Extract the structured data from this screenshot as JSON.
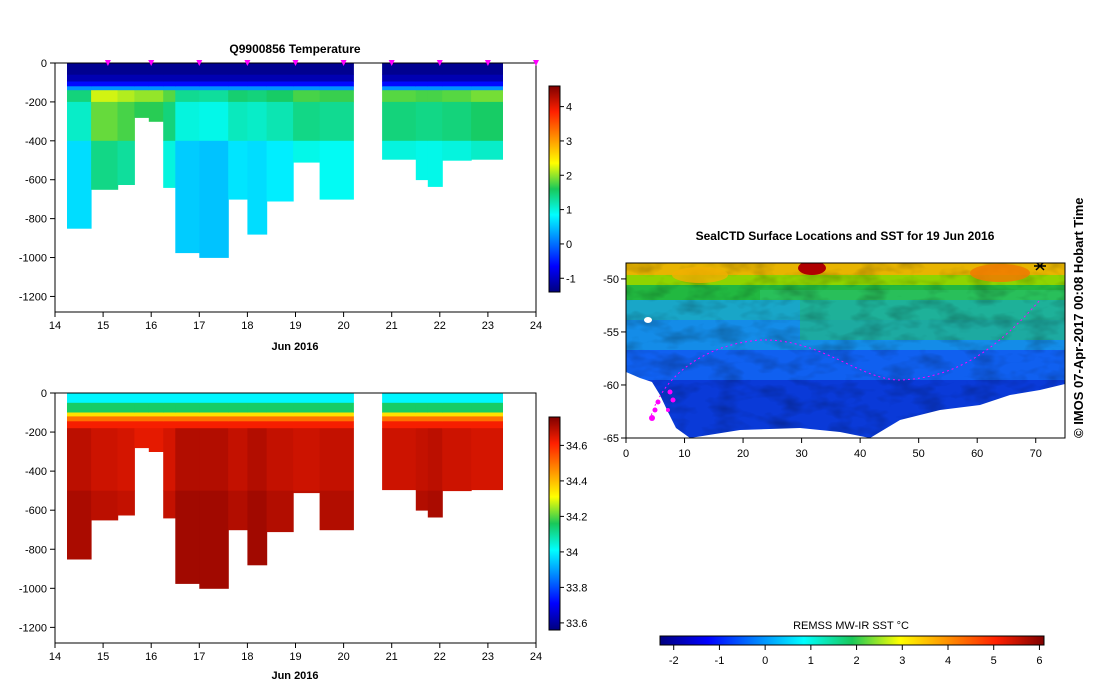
{
  "chart_data": [
    {
      "type": "heatmap",
      "title": "Q9900856  Temperature",
      "xlabel": "Jun 2016",
      "ylabel": "",
      "xlim": [
        14,
        24
      ],
      "ylim": [
        -1280,
        0
      ],
      "x_ticks": [
        "14",
        "15",
        "16",
        "17",
        "18",
        "19",
        "20",
        "21",
        "22",
        "23",
        "24"
      ],
      "y_ticks": [
        "0",
        "-200",
        "-400",
        "-600",
        "-800",
        "-1000",
        "-1200"
      ],
      "colorbar": {
        "ticks": [
          "4",
          "3",
          "2",
          "1",
          "0",
          "-1"
        ],
        "range": [
          -1.4,
          4.6
        ]
      },
      "marker_days": [
        15.1,
        16.0,
        17.0,
        18.0,
        19.0,
        20.0,
        21.0,
        22.0,
        23.0,
        24.0
      ],
      "profiles": [
        {
          "x0": 14.25,
          "x1": 14.75,
          "depth": 850,
          "deep": 0.65
        },
        {
          "x0": 14.75,
          "x1": 15.3,
          "depth": 650,
          "deep": 1.4
        },
        {
          "x0": 15.3,
          "x1": 15.65,
          "depth": 625,
          "deep": 1.3
        },
        {
          "x0": 15.65,
          "x1": 15.95,
          "depth": 280,
          "deep": 1.2
        },
        {
          "x0": 15.95,
          "x1": 16.25,
          "depth": 300,
          "deep": 1.2
        },
        {
          "x0": 16.25,
          "x1": 16.5,
          "depth": 640,
          "deep": 1.0
        },
        {
          "x0": 16.5,
          "x1": 17.0,
          "depth": 975,
          "deep": 0.55
        },
        {
          "x0": 17.0,
          "x1": 17.6,
          "depth": 1000,
          "deep": 0.5
        },
        {
          "x0": 17.6,
          "x1": 18.0,
          "depth": 700,
          "deep": 0.7
        },
        {
          "x0": 18.0,
          "x1": 18.4,
          "depth": 880,
          "deep": 0.65
        },
        {
          "x0": 18.4,
          "x1": 18.95,
          "depth": 710,
          "deep": 0.75
        },
        {
          "x0": 18.95,
          "x1": 19.5,
          "depth": 510,
          "deep": 0.95
        },
        {
          "x0": 19.5,
          "x1": 20.2,
          "depth": 700,
          "deep": 0.9
        },
        {
          "x0": 20.8,
          "x1": 21.5,
          "depth": 495,
          "deep": 1.0
        },
        {
          "x0": 21.5,
          "x1": 21.75,
          "depth": 600,
          "deep": 0.95
        },
        {
          "x0": 21.75,
          "x1": 22.05,
          "depth": 635,
          "deep": 0.95
        },
        {
          "x0": 22.05,
          "x1": 22.65,
          "depth": 500,
          "deep": 1.0
        },
        {
          "x0": 22.65,
          "x1": 23.3,
          "depth": 495,
          "deep": 1.1
        }
      ]
    },
    {
      "type": "heatmap",
      "title": "",
      "xlabel": "Jun 2016",
      "ylabel": "",
      "xlim": [
        14,
        24
      ],
      "ylim": [
        -1280,
        0
      ],
      "x_ticks": [
        "14",
        "15",
        "16",
        "17",
        "18",
        "19",
        "20",
        "21",
        "22",
        "23",
        "24"
      ],
      "y_ticks": [
        "0",
        "-200",
        "-400",
        "-600",
        "-800",
        "-1000",
        "-1200"
      ],
      "colorbar": {
        "ticks": [
          "34.6",
          "34.4",
          "34.2",
          "34",
          "33.8",
          "33.6"
        ],
        "range": [
          33.56,
          34.76
        ]
      },
      "profiles": [
        {
          "x0": 14.25,
          "x1": 14.75,
          "depth": 850,
          "deep": 34.71
        },
        {
          "x0": 14.75,
          "x1": 15.3,
          "depth": 650,
          "deep": 34.69
        },
        {
          "x0": 15.3,
          "x1": 15.65,
          "depth": 625,
          "deep": 34.68
        },
        {
          "x0": 15.65,
          "x1": 15.95,
          "depth": 280,
          "deep": 34.66
        },
        {
          "x0": 15.95,
          "x1": 16.25,
          "depth": 300,
          "deep": 34.66
        },
        {
          "x0": 16.25,
          "x1": 16.5,
          "depth": 640,
          "deep": 34.68
        },
        {
          "x0": 16.5,
          "x1": 17.0,
          "depth": 975,
          "deep": 34.72
        },
        {
          "x0": 17.0,
          "x1": 17.6,
          "depth": 1000,
          "deep": 34.72
        },
        {
          "x0": 17.6,
          "x1": 18.0,
          "depth": 700,
          "deep": 34.7
        },
        {
          "x0": 18.0,
          "x1": 18.4,
          "depth": 880,
          "deep": 34.72
        },
        {
          "x0": 18.4,
          "x1": 18.95,
          "depth": 710,
          "deep": 34.7
        },
        {
          "x0": 18.95,
          "x1": 19.5,
          "depth": 510,
          "deep": 34.69
        },
        {
          "x0": 19.5,
          "x1": 20.2,
          "depth": 700,
          "deep": 34.7
        },
        {
          "x0": 20.8,
          "x1": 21.5,
          "depth": 495,
          "deep": 34.69
        },
        {
          "x0": 21.5,
          "x1": 21.75,
          "depth": 600,
          "deep": 34.7
        },
        {
          "x0": 21.75,
          "x1": 22.05,
          "depth": 635,
          "deep": 34.71
        },
        {
          "x0": 22.05,
          "x1": 22.65,
          "depth": 500,
          "deep": 34.69
        },
        {
          "x0": 22.65,
          "x1": 23.3,
          "depth": 495,
          "deep": 34.68
        }
      ]
    },
    {
      "type": "heatmap",
      "title": "SealCTD Surface Locations and SST for 19 Jun 2016",
      "xlim": [
        0,
        75
      ],
      "ylim": [
        -65,
        -48.5
      ],
      "x_ticks": [
        "0",
        "10",
        "20",
        "30",
        "40",
        "50",
        "60",
        "70"
      ],
      "y_ticks": [
        "-50",
        "-55",
        "-60",
        "-65"
      ],
      "colorbar": {
        "label": "REMSS MW-IR SST °C",
        "ticks": [
          "-2",
          "-1",
          "0",
          "1",
          "2",
          "3",
          "4",
          "5",
          "6"
        ],
        "range": [
          -2.3,
          6.1
        ]
      }
    }
  ],
  "stamp": "©  IMOS 07-Apr-2017 00:08 Hobart Time"
}
